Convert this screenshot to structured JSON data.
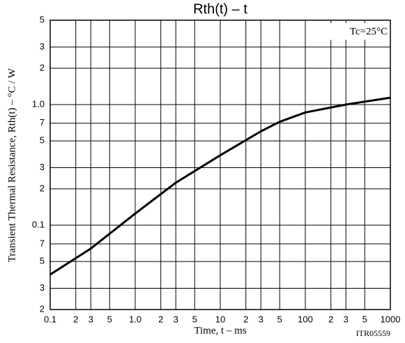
{
  "chart_data": {
    "type": "line",
    "title": "Rth(t)  –  t",
    "x_label": "Time, t  –  ms",
    "y_label": "Transient Thermal Resistance, Rth(t)  –  °C / W",
    "annotations": [
      "Tc=25°C",
      "ITR05559"
    ],
    "log_x": true,
    "log_y": true,
    "grid": true,
    "xlim": [
      0.1,
      1000
    ],
    "ylim": [
      0.02,
      5
    ],
    "xticks": [
      0.1,
      {
        "value": 0.2,
        "label": "2"
      },
      {
        "value": 0.3,
        "label": "3"
      },
      {
        "value": 0.5,
        "label": "5"
      },
      {
        "value": 1,
        "label": "1.0"
      },
      {
        "value": 2,
        "label": "2"
      },
      {
        "value": 3,
        "label": "3"
      },
      {
        "value": 5,
        "label": "5"
      },
      10,
      {
        "value": 20,
        "label": "2"
      },
      {
        "value": 30,
        "label": "3"
      },
      {
        "value": 50,
        "label": "5"
      },
      100,
      {
        "value": 200,
        "label": "2"
      },
      {
        "value": 300,
        "label": "3"
      },
      {
        "value": 500,
        "label": "5"
      },
      1000
    ],
    "yticks": [
      {
        "value": 0.02,
        "label": "2"
      },
      {
        "value": 0.03,
        "label": "3"
      },
      {
        "value": 0.05,
        "label": "5"
      },
      {
        "value": 0.07,
        "label": "7"
      },
      0.1,
      {
        "value": 0.2,
        "label": "2"
      },
      {
        "value": 0.3,
        "label": "3"
      },
      {
        "value": 0.5,
        "label": "5"
      },
      {
        "value": 0.7,
        "label": "7"
      },
      {
        "value": 1,
        "label": "1.0"
      },
      {
        "value": 2,
        "label": "2"
      },
      {
        "value": 3,
        "label": "3"
      },
      {
        "value": 5,
        "label": "5"
      }
    ],
    "x": [
      0.1,
      0.3,
      1,
      3,
      10,
      30,
      50,
      100,
      300,
      1000
    ],
    "series": [
      {
        "color": "#000000",
        "values": [
          0.039,
          0.064,
          0.125,
          0.225,
          0.38,
          0.6,
          0.72,
          0.86,
          1.0,
          1.14
        ]
      }
    ]
  }
}
